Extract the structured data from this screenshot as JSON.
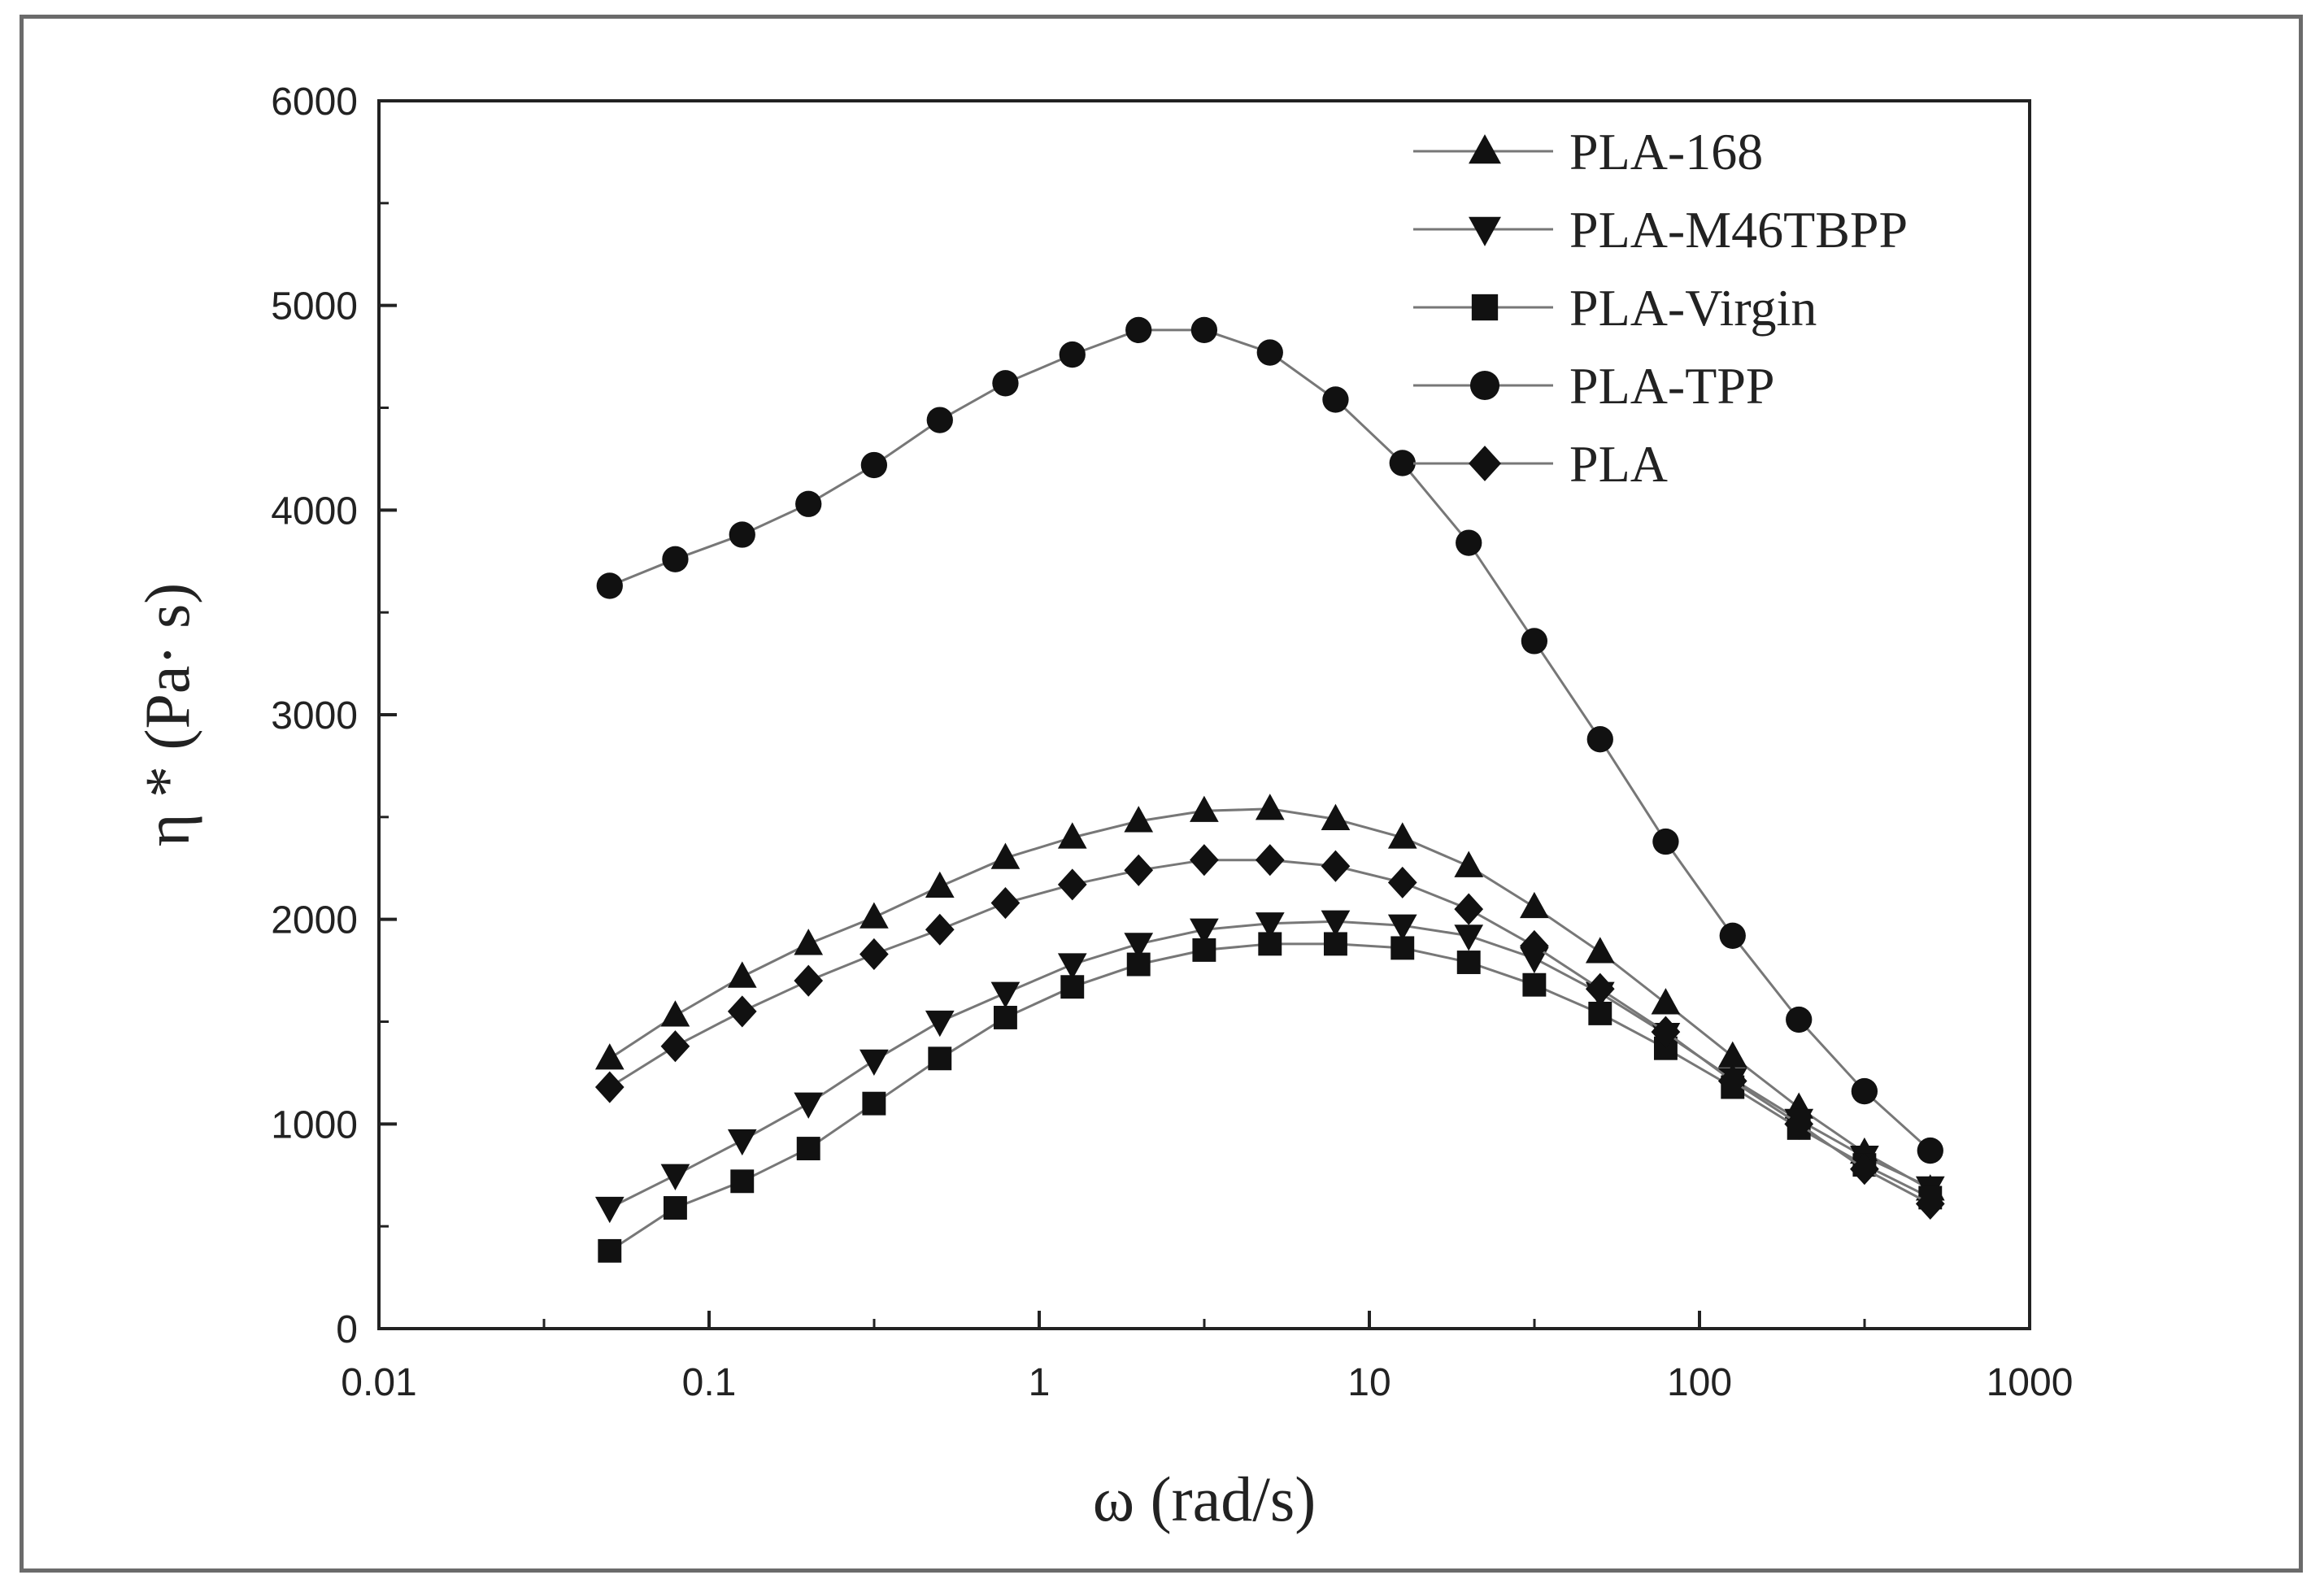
{
  "chart_data": {
    "type": "line",
    "title": "",
    "xlabel": "ω (rad/s)",
    "ylabel": "η * (Pa· s)",
    "xscale": "log",
    "xlim": [
      0.01,
      1000
    ],
    "ylim": [
      0,
      6000
    ],
    "x_ticks": [
      "0.01",
      "0.1",
      "1",
      "10",
      "100",
      "1000"
    ],
    "y_ticks": [
      "0",
      "1000",
      "2000",
      "3000",
      "4000",
      "5000",
      "6000"
    ],
    "legend_position": "top-right",
    "x": [
      0.05,
      0.079,
      0.126,
      0.2,
      0.316,
      0.5,
      0.79,
      1.26,
      2.0,
      3.16,
      5.0,
      7.9,
      12.6,
      20,
      31.6,
      50,
      79,
      126,
      200,
      316,
      500
    ],
    "series": [
      {
        "name": "PLA-168",
        "marker": "triangle-up",
        "values": [
          1320,
          1530,
          1720,
          1880,
          2010,
          2160,
          2300,
          2400,
          2480,
          2530,
          2540,
          2490,
          2400,
          2260,
          2060,
          1840,
          1590,
          1330,
          1080,
          860,
          680
        ]
      },
      {
        "name": "PLA-M46TBPP",
        "marker": "triangle-down",
        "values": [
          590,
          750,
          920,
          1100,
          1310,
          1500,
          1640,
          1780,
          1880,
          1950,
          1980,
          1990,
          1970,
          1920,
          1810,
          1640,
          1440,
          1220,
          1020,
          840,
          690
        ]
      },
      {
        "name": "PLA-Virgin",
        "marker": "square",
        "values": [
          380,
          590,
          720,
          880,
          1100,
          1320,
          1520,
          1670,
          1780,
          1850,
          1880,
          1880,
          1860,
          1790,
          1680,
          1540,
          1370,
          1180,
          980,
          800,
          640
        ]
      },
      {
        "name": "PLA-TPP",
        "marker": "circle",
        "values": [
          3630,
          3760,
          3880,
          4030,
          4220,
          4440,
          4620,
          4760,
          4880,
          4880,
          4770,
          4540,
          4230,
          3840,
          3360,
          2880,
          2380,
          1920,
          1510,
          1160,
          870
        ]
      },
      {
        "name": "PLA",
        "marker": "diamond",
        "values": [
          1180,
          1380,
          1550,
          1700,
          1830,
          1950,
          2080,
          2170,
          2240,
          2290,
          2290,
          2260,
          2180,
          2050,
          1870,
          1660,
          1450,
          1210,
          1000,
          780,
          610
        ]
      }
    ]
  }
}
